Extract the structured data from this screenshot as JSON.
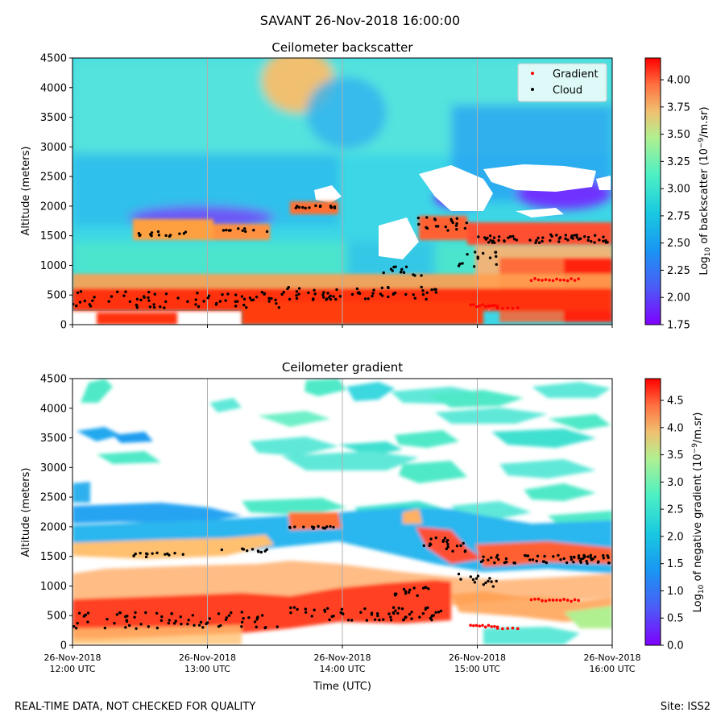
{
  "figure": {
    "suptitle": "SAVANT 26-Nov-2018 16:00:00",
    "footer_left": "REAL-TIME DATA, NOT CHECKED FOR QUALITY",
    "footer_right": "Site: ISS2"
  },
  "colors": {
    "gradient_marker": "#ff0000",
    "cloud_marker": "#000000",
    "colormap": "rainbow"
  },
  "chart_data": [
    {
      "type": "heatmap",
      "title": "Ceilometer backscatter",
      "ylabel": "Altitude (meters)",
      "xlabel": "",
      "ylim": [
        0,
        4500
      ],
      "yticks": [
        "0",
        "500",
        "1000",
        "1500",
        "2000",
        "2500",
        "3000",
        "3500",
        "4000",
        "4500"
      ],
      "xticks": [
        {
          "date": "26-Nov-2018",
          "time": "12:00 UTC"
        },
        {
          "date": "26-Nov-2018",
          "time": "13:00 UTC"
        },
        {
          "date": "26-Nov-2018",
          "time": "14:00 UTC"
        },
        {
          "date": "26-Nov-2018",
          "time": "15:00 UTC"
        },
        {
          "date": "26-Nov-2018",
          "time": "16:00 UTC"
        }
      ],
      "xtick_labels_visible": false,
      "grid": "vertical",
      "colorbar": {
        "label": "Log10 of backscatter (10^-9/m.sr)",
        "range": [
          1.75,
          4.2
        ],
        "ticks": [
          "1.75",
          "2.00",
          "2.25",
          "2.50",
          "2.75",
          "3.00",
          "3.25",
          "3.50",
          "3.75",
          "4.00"
        ]
      },
      "legend": {
        "placement": "upper right",
        "entries": [
          {
            "name": "Gradient",
            "color": "#ff0000"
          },
          {
            "name": "Cloud",
            "color": "#000000"
          }
        ]
      }
    },
    {
      "type": "heatmap",
      "title": "Ceilometer gradient",
      "ylabel": "Altitude (meters)",
      "xlabel": "Time (UTC)",
      "ylim": [
        0,
        4500
      ],
      "yticks": [
        "0",
        "500",
        "1000",
        "1500",
        "2000",
        "2500",
        "3000",
        "3500",
        "4000",
        "4500"
      ],
      "xticks": [
        {
          "date": "26-Nov-2018",
          "time": "12:00 UTC"
        },
        {
          "date": "26-Nov-2018",
          "time": "13:00 UTC"
        },
        {
          "date": "26-Nov-2018",
          "time": "14:00 UTC"
        },
        {
          "date": "26-Nov-2018",
          "time": "15:00 UTC"
        },
        {
          "date": "26-Nov-2018",
          "time": "16:00 UTC"
        }
      ],
      "xtick_labels_visible": true,
      "grid": "vertical",
      "colorbar": {
        "label": "Log10 of negative gradient (10^-9/m.sr)",
        "range": [
          0.0,
          4.9
        ],
        "ticks": [
          "0.0",
          "0.5",
          "1.0",
          "1.5",
          "2.0",
          "2.5",
          "3.0",
          "3.5",
          "4.0",
          "4.5"
        ]
      }
    }
  ],
  "features": {
    "cloud_tracks": [
      {
        "t0": 12.0,
        "t1": 13.55,
        "alt": 420,
        "jitter": 140,
        "n": 70
      },
      {
        "t0": 12.45,
        "t1": 12.85,
        "alt": 1530,
        "jitter": 40,
        "n": 14
      },
      {
        "t0": 13.1,
        "t1": 13.45,
        "alt": 1600,
        "jitter": 30,
        "n": 10
      },
      {
        "t0": 13.6,
        "t1": 13.95,
        "alt": 1990,
        "jitter": 25,
        "n": 14
      },
      {
        "t0": 13.55,
        "t1": 14.75,
        "alt": 530,
        "jitter": 110,
        "n": 60
      },
      {
        "t0": 14.3,
        "t1": 14.65,
        "alt": 900,
        "jitter": 80,
        "n": 14
      },
      {
        "t0": 14.55,
        "t1": 14.95,
        "alt": 1700,
        "jitter": 120,
        "n": 20
      },
      {
        "t0": 14.85,
        "t1": 15.15,
        "alt": 1100,
        "jitter": 130,
        "n": 14
      },
      {
        "t0": 15.0,
        "t1": 16.0,
        "alt": 1450,
        "jitter": 70,
        "n": 60
      }
    ],
    "gradient_tracks": [
      {
        "t0": 14.95,
        "t1": 15.15,
        "alt": 320,
        "jitter": 40,
        "n": 10
      },
      {
        "t0": 15.4,
        "t1": 15.75,
        "alt": 760,
        "jitter": 40,
        "n": 14
      },
      {
        "t0": 15.15,
        "t1": 15.3,
        "alt": 280,
        "jitter": 20,
        "n": 5
      }
    ]
  }
}
